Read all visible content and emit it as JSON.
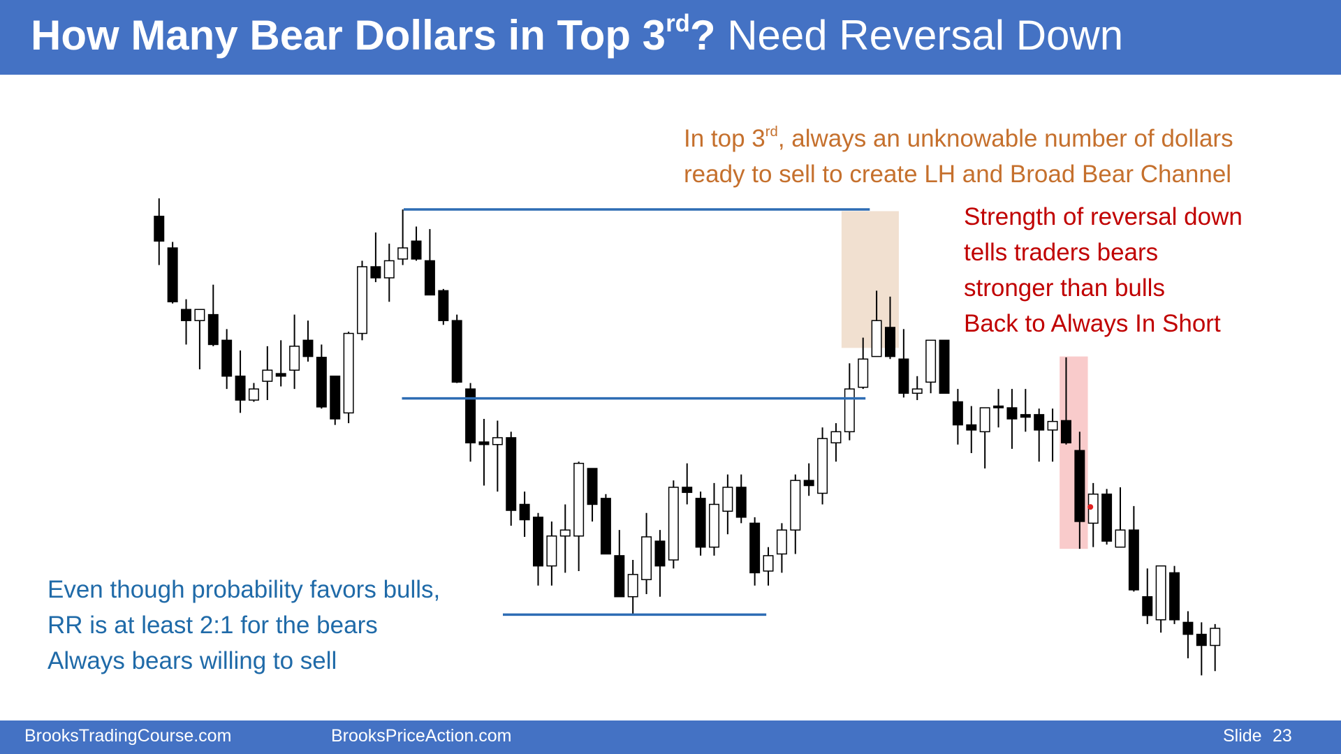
{
  "header": {
    "title": [
      "How Many Bear Dollars in Top 3",
      "rd",
      "?",
      "Need Reversal Down"
    ]
  },
  "chart_data": {
    "type": "candlestick",
    "open": [
      547,
      510,
      438,
      425,
      432,
      402,
      360,
      332,
      354,
      363,
      367,
      402,
      382,
      360,
      317,
      410,
      488,
      475,
      497,
      518,
      495,
      460,
      425,
      345,
      283,
      280,
      288,
      210,
      195,
      138,
      173,
      173,
      252,
      217,
      150,
      102,
      122,
      167,
      145,
      230,
      217,
      160,
      202,
      230,
      188,
      132,
      152,
      180,
      238,
      223,
      282,
      295,
      347,
      383,
      417,
      380,
      340,
      353,
      402,
      330,
      303,
      295,
      325,
      323,
      315,
      315,
      297,
      308,
      273,
      188,
      222,
      160,
      180,
      102,
      75,
      130,
      72,
      58,
      45
    ],
    "high": [
      568,
      517,
      450,
      438,
      467,
      415,
      390,
      352,
      395,
      402,
      432,
      425,
      397,
      360,
      412,
      495,
      528,
      515,
      555,
      535,
      532,
      462,
      432,
      352,
      310,
      308,
      295,
      225,
      200,
      190,
      210,
      260,
      252,
      222,
      180,
      145,
      200,
      180,
      238,
      258,
      225,
      235,
      245,
      245,
      195,
      160,
      188,
      245,
      258,
      300,
      305,
      375,
      405,
      460,
      453,
      415,
      360,
      402,
      402,
      345,
      325,
      323,
      345,
      345,
      345,
      322,
      322,
      382,
      295,
      235,
      228,
      230,
      208,
      135,
      138,
      138,
      85,
      72,
      70
    ],
    "low": [
      490,
      445,
      397,
      368,
      395,
      345,
      317,
      330,
      332,
      348,
      345,
      377,
      322,
      303,
      305,
      402,
      470,
      447,
      490,
      495,
      455,
      420,
      352,
      260,
      232,
      225,
      185,
      172,
      115,
      115,
      130,
      132,
      190,
      152,
      102,
      82,
      105,
      102,
      135,
      210,
      150,
      150,
      175,
      188,
      115,
      115,
      130,
      152,
      220,
      210,
      260,
      285,
      345,
      383,
      380,
      335,
      332,
      340,
      340,
      280,
      270,
      252,
      300,
      275,
      295,
      260,
      260,
      280,
      158,
      160,
      163,
      160,
      108,
      70,
      60,
      70,
      30,
      10,
      15
    ],
    "close": [
      518,
      447,
      425,
      438,
      397,
      360,
      332,
      345,
      367,
      360,
      395,
      383,
      324,
      310,
      410,
      488,
      475,
      495,
      510,
      497,
      455,
      425,
      353,
      282,
      280,
      288,
      203,
      192,
      138,
      173,
      180,
      258,
      210,
      152,
      102,
      128,
      172,
      138,
      230,
      224,
      160,
      210,
      230,
      195,
      130,
      150,
      180,
      238,
      232,
      287,
      295,
      345,
      380,
      425,
      383,
      340,
      345,
      402,
      340,
      303,
      297,
      323,
      323,
      310,
      312,
      297,
      307,
      282,
      190,
      222,
      167,
      180,
      110,
      80,
      138,
      75,
      58,
      45,
      65
    ],
    "up_color": "#ffffff",
    "down_color": "#000000",
    "ylim": [
      0,
      600
    ],
    "levels": [
      555,
      334,
      81
    ],
    "level_color": "#2e6db4",
    "annotations": {
      "top": [
        "In top 3",
        "rd",
        ", always an unknowable number of dollars",
        "ready to sell to create LH and Broad Bear Channel"
      ],
      "right": [
        "Strength of reversal down",
        "tells traders bears",
        "stronger than bulls",
        "Back to Always In Short"
      ],
      "bottom": [
        "Even though probability favors bulls,",
        "RR is at least 2:1 for the bears",
        "Always bears willing to sell"
      ]
    }
  },
  "footer": {
    "left": "BrooksTradingCourse.com",
    "middle": "BrooksPriceAction.com",
    "slide_label": "Slide",
    "slide_number": "23"
  }
}
